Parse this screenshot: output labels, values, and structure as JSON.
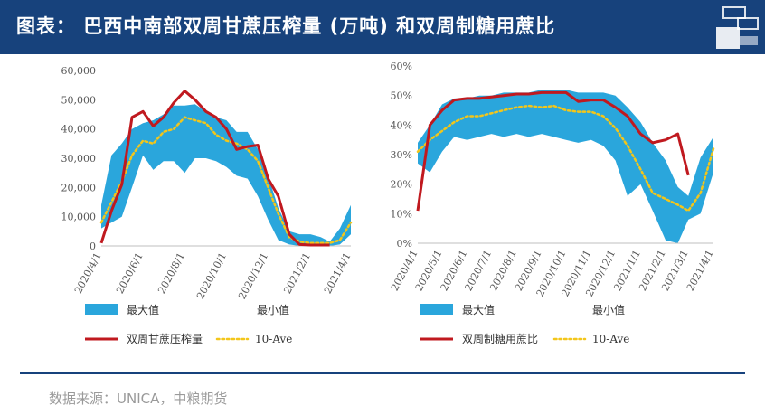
{
  "header": {
    "title": "图表： 巴西中南部双周甘蔗压榨量 (万吨) 和双周制糖用蔗比"
  },
  "source": "数据来源：UNICA，中粮期货",
  "colors": {
    "header_bg": "#17427c",
    "band": "#2aa6dc",
    "current": "#c0191f",
    "average": "#f3c61a"
  },
  "chart_data": [
    {
      "type": "area",
      "title": "",
      "xlabel": "",
      "ylabel": "",
      "ylim": [
        0,
        60000
      ],
      "y_ticks": [
        "0",
        "10,000",
        "20,000",
        "30,000",
        "40,000",
        "50,000",
        "60,000"
      ],
      "x_ticks": [
        "2020/4/1",
        "2020/6/1",
        "2020/8/1",
        "2020/10/1",
        "2020/12/1",
        "2021/2/1",
        "2021/4/1"
      ],
      "x_start": "2020-04-01",
      "x_end": "2021-04-01",
      "legend": {
        "max_label": "最大值",
        "min_label": "最小值",
        "current_label": "双周甘蔗压榨量",
        "avg_label": "10-Ave"
      },
      "series": [
        {
          "name": "最大值",
          "x": [
            "2020-04-01",
            "2020-04-16",
            "2020-05-01",
            "2020-05-16",
            "2020-06-01",
            "2020-06-16",
            "2020-07-01",
            "2020-07-16",
            "2020-08-01",
            "2020-08-16",
            "2020-09-01",
            "2020-09-16",
            "2020-10-01",
            "2020-10-16",
            "2020-11-01",
            "2020-11-16",
            "2020-12-01",
            "2020-12-16",
            "2021-01-01",
            "2021-01-16",
            "2021-02-01",
            "2021-02-16",
            "2021-03-01",
            "2021-03-16",
            "2021-04-01"
          ],
          "values": [
            14000,
            31000,
            35000,
            40000,
            42000,
            43000,
            45000,
            48000,
            48000,
            48500,
            46000,
            44000,
            43000,
            39000,
            39000,
            33000,
            24000,
            13000,
            5000,
            4000,
            4000,
            3000,
            1500,
            6000,
            14000
          ]
        },
        {
          "name": "最小值",
          "x": [
            "2020-04-01",
            "2020-04-16",
            "2020-05-01",
            "2020-05-16",
            "2020-06-01",
            "2020-06-16",
            "2020-07-01",
            "2020-07-16",
            "2020-08-01",
            "2020-08-16",
            "2020-09-01",
            "2020-09-16",
            "2020-10-01",
            "2020-10-16",
            "2020-11-01",
            "2020-11-16",
            "2020-12-01",
            "2020-12-16",
            "2021-01-01",
            "2021-01-16",
            "2021-02-01",
            "2021-02-16",
            "2021-03-01",
            "2021-03-16",
            "2021-04-01"
          ],
          "values": [
            6000,
            8000,
            10000,
            20000,
            31000,
            26000,
            29000,
            29000,
            25000,
            30000,
            30000,
            29000,
            27000,
            24000,
            23000,
            17000,
            9000,
            2000,
            500,
            0,
            0,
            0,
            0,
            500,
            4000
          ]
        },
        {
          "name": "双周甘蔗压榨量",
          "x": [
            "2020-04-01",
            "2020-04-16",
            "2020-05-01",
            "2020-05-16",
            "2020-06-01",
            "2020-06-16",
            "2020-07-01",
            "2020-07-16",
            "2020-08-01",
            "2020-08-16",
            "2020-09-01",
            "2020-09-16",
            "2020-10-01",
            "2020-10-16",
            "2020-11-01",
            "2020-11-16",
            "2020-12-01",
            "2020-12-16",
            "2021-01-01",
            "2021-01-16",
            "2021-02-01",
            "2021-02-16",
            "2021-03-01"
          ],
          "values": [
            1000,
            12000,
            21000,
            44000,
            46000,
            41000,
            44000,
            49000,
            53000,
            50000,
            46000,
            44000,
            40000,
            33000,
            34000,
            34500,
            23000,
            17000,
            4000,
            500,
            300,
            300,
            300
          ]
        },
        {
          "name": "10-Ave",
          "x": [
            "2020-04-01",
            "2020-04-16",
            "2020-05-01",
            "2020-05-16",
            "2020-06-01",
            "2020-06-16",
            "2020-07-01",
            "2020-07-16",
            "2020-08-01",
            "2020-08-16",
            "2020-09-01",
            "2020-09-16",
            "2020-10-01",
            "2020-10-16",
            "2020-11-01",
            "2020-11-16",
            "2020-12-01",
            "2020-12-16",
            "2021-01-01",
            "2021-01-16",
            "2021-02-01",
            "2021-02-16",
            "2021-03-01",
            "2021-03-16",
            "2021-04-01"
          ],
          "values": [
            8000,
            15000,
            22000,
            31000,
            36000,
            35000,
            39000,
            40000,
            44000,
            43000,
            42000,
            38000,
            36000,
            35000,
            33000,
            29000,
            20000,
            11000,
            3000,
            1500,
            1000,
            1000,
            1000,
            2000,
            8000
          ]
        }
      ]
    },
    {
      "type": "area",
      "title": "",
      "xlabel": "",
      "ylabel": "",
      "ylim": [
        0,
        60
      ],
      "y_ticks": [
        "0%",
        "10%",
        "20%",
        "30%",
        "40%",
        "50%",
        "60%"
      ],
      "x_ticks": [
        "2020/4/1",
        "2020/5/1",
        "2020/6/1",
        "2020/7/1",
        "2020/8/1",
        "2020/9/1",
        "2020/10/1",
        "2020/11/1",
        "2020/12/1",
        "2021/1/1",
        "2021/2/1",
        "2021/3/1",
        "2021/4/1"
      ],
      "x_start": "2020-04-01",
      "x_end": "2021-04-01",
      "legend": {
        "max_label": "最大值",
        "min_label": "最小值",
        "current_label": "双周制糖用蔗比",
        "avg_label": "10-Ave"
      },
      "series": [
        {
          "name": "最大值",
          "x": [
            "2020-04-01",
            "2020-04-16",
            "2020-05-01",
            "2020-05-16",
            "2020-06-01",
            "2020-06-16",
            "2020-07-01",
            "2020-07-16",
            "2020-08-01",
            "2020-08-16",
            "2020-09-01",
            "2020-09-16",
            "2020-10-01",
            "2020-10-16",
            "2020-11-01",
            "2020-11-16",
            "2020-12-01",
            "2020-12-16",
            "2021-01-01",
            "2021-01-16",
            "2021-02-01",
            "2021-02-16",
            "2021-03-01",
            "2021-03-16",
            "2021-04-01"
          ],
          "values": [
            34,
            40,
            47,
            49,
            49,
            50,
            50,
            51,
            51,
            51,
            52,
            52,
            52,
            51,
            51,
            51,
            50,
            46,
            41,
            34,
            28,
            19,
            16,
            29,
            36
          ]
        },
        {
          "name": "最小值",
          "x": [
            "2020-04-01",
            "2020-04-16",
            "2020-05-01",
            "2020-05-16",
            "2020-06-01",
            "2020-06-16",
            "2020-07-01",
            "2020-07-16",
            "2020-08-01",
            "2020-08-16",
            "2020-09-01",
            "2020-09-16",
            "2020-10-01",
            "2020-10-16",
            "2020-11-01",
            "2020-11-16",
            "2020-12-01",
            "2020-12-16",
            "2021-01-01",
            "2021-01-16",
            "2021-02-01",
            "2021-02-16",
            "2021-03-01",
            "2021-03-16",
            "2021-04-01"
          ],
          "values": [
            27,
            24,
            31,
            36,
            35,
            36,
            37,
            36,
            37,
            36,
            37,
            36,
            35,
            34,
            35,
            33,
            28,
            16,
            20,
            11,
            1,
            0,
            8,
            10,
            24
          ]
        },
        {
          "name": "双周制糖用蔗比",
          "x": [
            "2020-04-01",
            "2020-04-16",
            "2020-05-01",
            "2020-05-16",
            "2020-06-01",
            "2020-06-16",
            "2020-07-01",
            "2020-07-16",
            "2020-08-01",
            "2020-08-16",
            "2020-09-01",
            "2020-09-16",
            "2020-10-01",
            "2020-10-16",
            "2020-11-01",
            "2020-11-16",
            "2020-12-01",
            "2020-12-16",
            "2021-01-01",
            "2021-01-16",
            "2021-02-01",
            "2021-02-16",
            "2021-03-01"
          ],
          "values": [
            11,
            40,
            45,
            48.5,
            49,
            49,
            49.5,
            50,
            50.5,
            50.5,
            51,
            51,
            51,
            48,
            48.5,
            48.5,
            46,
            43,
            37,
            34,
            35,
            37,
            23
          ]
        },
        {
          "name": "10-Ave",
          "x": [
            "2020-04-01",
            "2020-04-16",
            "2020-05-01",
            "2020-05-16",
            "2020-06-01",
            "2020-06-16",
            "2020-07-01",
            "2020-07-16",
            "2020-08-01",
            "2020-08-16",
            "2020-09-01",
            "2020-09-16",
            "2020-10-01",
            "2020-10-16",
            "2020-11-01",
            "2020-11-16",
            "2020-12-01",
            "2020-12-16",
            "2021-01-01",
            "2021-01-16",
            "2021-02-01",
            "2021-02-16",
            "2021-03-01",
            "2021-03-16",
            "2021-04-01"
          ],
          "values": [
            31,
            35,
            38,
            41,
            43,
            43,
            44,
            45,
            46,
            46.5,
            46,
            46.5,
            45,
            44.5,
            44.5,
            43,
            39,
            33,
            25,
            17,
            15,
            13,
            11,
            17,
            32
          ]
        }
      ]
    }
  ]
}
